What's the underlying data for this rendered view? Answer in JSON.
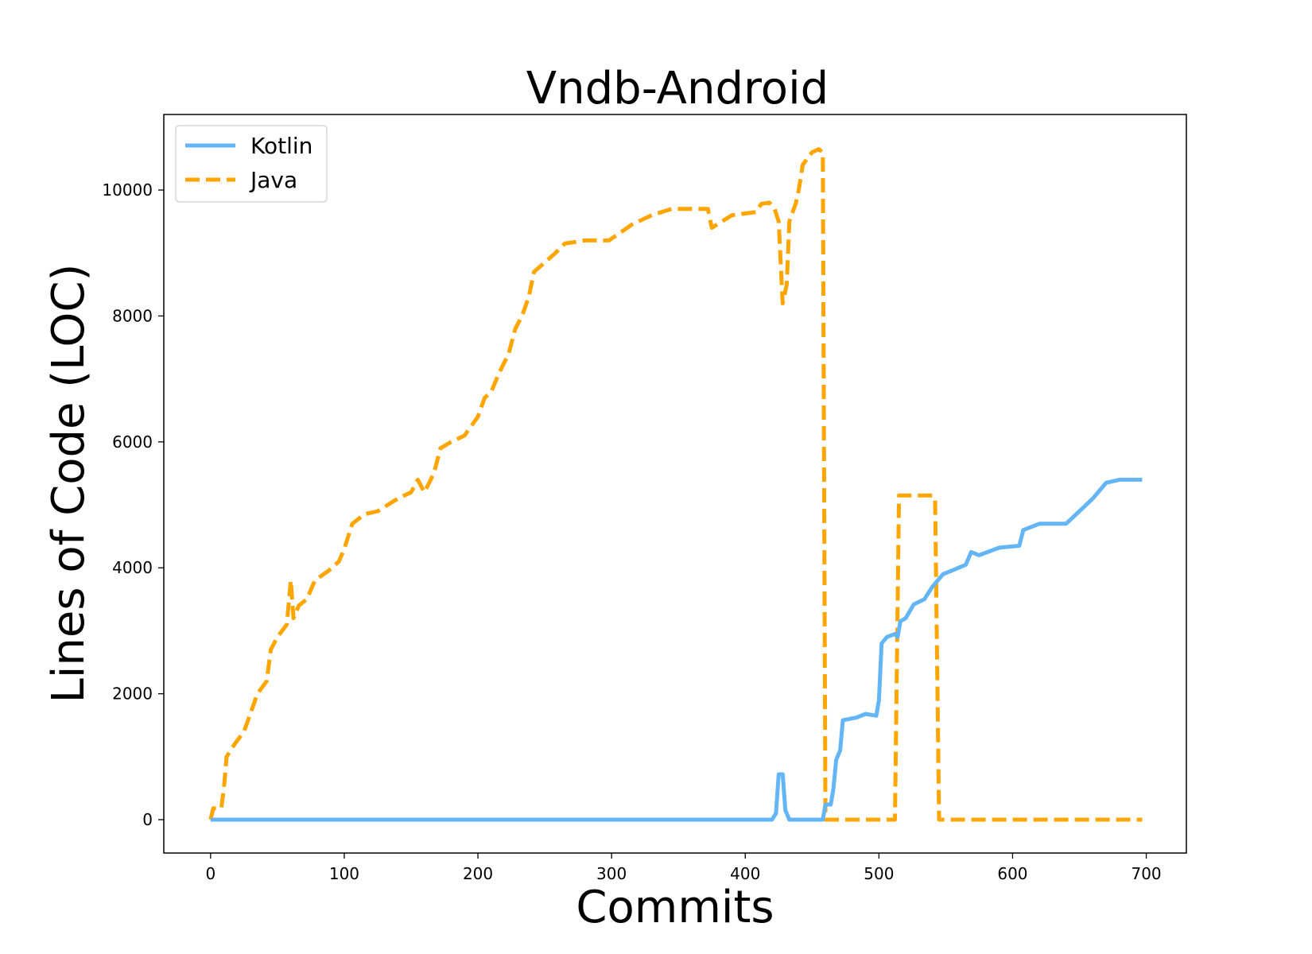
{
  "chart_data": {
    "type": "line",
    "title": "Vndb-Android",
    "xlabel": "Commits",
    "ylabel": "Lines of Code (LOC)",
    "xlim": [
      -35,
      730
    ],
    "ylim": [
      -530,
      11200
    ],
    "xticks": [
      0,
      100,
      200,
      300,
      400,
      500,
      600,
      700
    ],
    "yticks": [
      0,
      2000,
      4000,
      6000,
      8000,
      10000
    ],
    "grid": false,
    "legend_position": "top-left",
    "series": [
      {
        "name": "Kotlin",
        "color": "#64b5f6",
        "style": "solid",
        "points": [
          [
            0,
            0
          ],
          [
            420,
            0
          ],
          [
            423,
            100
          ],
          [
            425,
            720
          ],
          [
            428,
            720
          ],
          [
            430,
            150
          ],
          [
            433,
            0
          ],
          [
            458,
            0
          ],
          [
            460,
            240
          ],
          [
            464,
            240
          ],
          [
            466,
            500
          ],
          [
            468,
            950
          ],
          [
            471,
            1100
          ],
          [
            473,
            1580
          ],
          [
            478,
            1600
          ],
          [
            483,
            1620
          ],
          [
            490,
            1680
          ],
          [
            498,
            1650
          ],
          [
            500,
            1900
          ],
          [
            502,
            2800
          ],
          [
            506,
            2900
          ],
          [
            512,
            2950
          ],
          [
            514,
            2900
          ],
          [
            516,
            3150
          ],
          [
            520,
            3200
          ],
          [
            526,
            3420
          ],
          [
            534,
            3500
          ],
          [
            540,
            3700
          ],
          [
            548,
            3900
          ],
          [
            555,
            3960
          ],
          [
            565,
            4050
          ],
          [
            569,
            4250
          ],
          [
            575,
            4200
          ],
          [
            590,
            4320
          ],
          [
            605,
            4350
          ],
          [
            608,
            4600
          ],
          [
            620,
            4700
          ],
          [
            640,
            4700
          ],
          [
            650,
            4900
          ],
          [
            660,
            5100
          ],
          [
            670,
            5350
          ],
          [
            680,
            5400
          ],
          [
            697,
            5400
          ]
        ]
      },
      {
        "name": "Java",
        "color": "#ffa500",
        "style": "dashed",
        "points": [
          [
            0,
            0
          ],
          [
            2,
            180
          ],
          [
            8,
            180
          ],
          [
            10,
            500
          ],
          [
            12,
            1000
          ],
          [
            18,
            1200
          ],
          [
            25,
            1400
          ],
          [
            30,
            1700
          ],
          [
            35,
            2000
          ],
          [
            42,
            2200
          ],
          [
            45,
            2700
          ],
          [
            50,
            2900
          ],
          [
            57,
            3100
          ],
          [
            60,
            3800
          ],
          [
            62,
            3200
          ],
          [
            66,
            3400
          ],
          [
            72,
            3500
          ],
          [
            78,
            3800
          ],
          [
            88,
            3950
          ],
          [
            96,
            4100
          ],
          [
            100,
            4300
          ],
          [
            106,
            4700
          ],
          [
            115,
            4850
          ],
          [
            125,
            4900
          ],
          [
            140,
            5100
          ],
          [
            150,
            5200
          ],
          [
            155,
            5400
          ],
          [
            160,
            5200
          ],
          [
            167,
            5500
          ],
          [
            172,
            5900
          ],
          [
            180,
            6000
          ],
          [
            190,
            6100
          ],
          [
            200,
            6400
          ],
          [
            205,
            6700
          ],
          [
            210,
            6800
          ],
          [
            216,
            7100
          ],
          [
            223,
            7400
          ],
          [
            228,
            7800
          ],
          [
            233,
            8000
          ],
          [
            238,
            8300
          ],
          [
            242,
            8700
          ],
          [
            250,
            8850
          ],
          [
            258,
            9000
          ],
          [
            265,
            9150
          ],
          [
            280,
            9200
          ],
          [
            298,
            9200
          ],
          [
            305,
            9300
          ],
          [
            315,
            9450
          ],
          [
            330,
            9600
          ],
          [
            345,
            9700
          ],
          [
            360,
            9700
          ],
          [
            372,
            9700
          ],
          [
            375,
            9400
          ],
          [
            390,
            9600
          ],
          [
            408,
            9650
          ],
          [
            412,
            9780
          ],
          [
            418,
            9800
          ],
          [
            422,
            9700
          ],
          [
            425,
            9500
          ],
          [
            428,
            8200
          ],
          [
            431,
            8500
          ],
          [
            433,
            9500
          ],
          [
            438,
            9800
          ],
          [
            440,
            10000
          ],
          [
            443,
            10400
          ],
          [
            450,
            10600
          ],
          [
            455,
            10650
          ],
          [
            458,
            10600
          ],
          [
            460,
            0
          ],
          [
            490,
            0
          ],
          [
            512,
            0
          ],
          [
            515,
            5150
          ],
          [
            540,
            5150
          ],
          [
            542,
            5100
          ],
          [
            545,
            0
          ],
          [
            697,
            0
          ]
        ]
      }
    ]
  }
}
